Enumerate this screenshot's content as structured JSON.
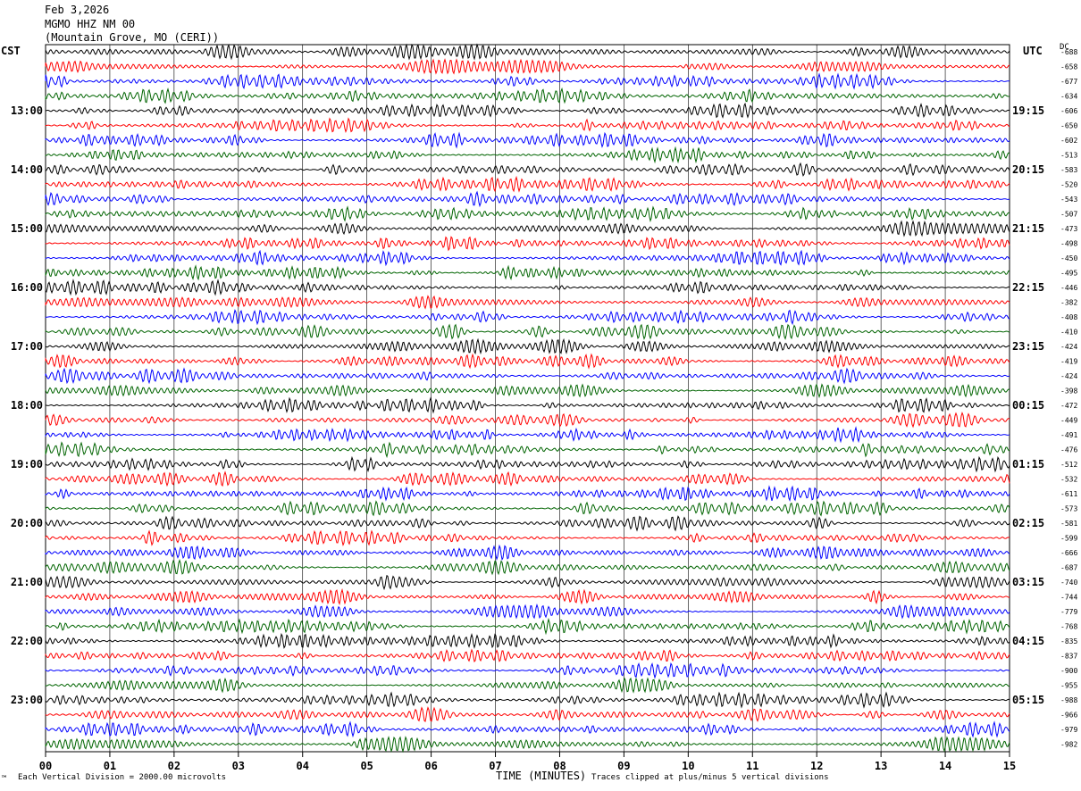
{
  "header": {
    "date": "Feb 3,2026",
    "station": "MGMO HHZ NM 00",
    "location": "(Mountain Grove, MO (CERI))"
  },
  "left_zone": "CST",
  "right_zone": "UTC",
  "dc_label": "DC",
  "footer": {
    "scale": "Each Vertical Division = 2000.00 microvolts",
    "xlabel": "TIME (MINUTES)",
    "clip": "Traces clipped at plus/minus 5 vertical divisions",
    "corner_mark": "™"
  },
  "chart_data": {
    "type": "line",
    "title": "",
    "xlabel": "TIME (MINUTES)",
    "x_ticks": [
      "00",
      "01",
      "02",
      "03",
      "04",
      "05",
      "06",
      "07",
      "08",
      "09",
      "10",
      "11",
      "12",
      "13",
      "14",
      "15"
    ],
    "xlim": [
      0,
      15
    ],
    "trace_colors": [
      "#000000",
      "#ff0000",
      "#0000ff",
      "#006400"
    ],
    "left_hour_labels": [
      "13:00",
      "14:00",
      "15:00",
      "16:00",
      "17:00",
      "18:00",
      "19:00",
      "20:00",
      "21:00",
      "22:00",
      "23:00"
    ],
    "right_hour_labels": [
      "19:15",
      "20:15",
      "21:15",
      "22:15",
      "23:15",
      "00:15",
      "01:15",
      "02:15",
      "03:15",
      "04:15",
      "05:15"
    ],
    "dc_offsets": [
      "-688",
      "-658",
      "-677",
      "-634",
      "-606",
      "-650",
      "-602",
      "-513",
      "-583",
      "-520",
      "-543",
      "-507",
      "-473",
      "-498",
      "-450",
      "-495",
      "-446",
      "-382",
      "-408",
      "-410",
      "-424",
      "-419",
      "-424",
      "-398",
      "-472",
      "-449",
      "-491",
      "-476",
      "-512",
      "-532",
      "-611",
      "-573",
      "-581",
      "-599",
      "-666",
      "-687",
      "-740",
      "-744",
      "-779",
      "-768",
      "-835",
      "-837",
      "-900",
      "-955",
      "-988",
      "-966",
      "-979",
      "-982"
    ]
  }
}
